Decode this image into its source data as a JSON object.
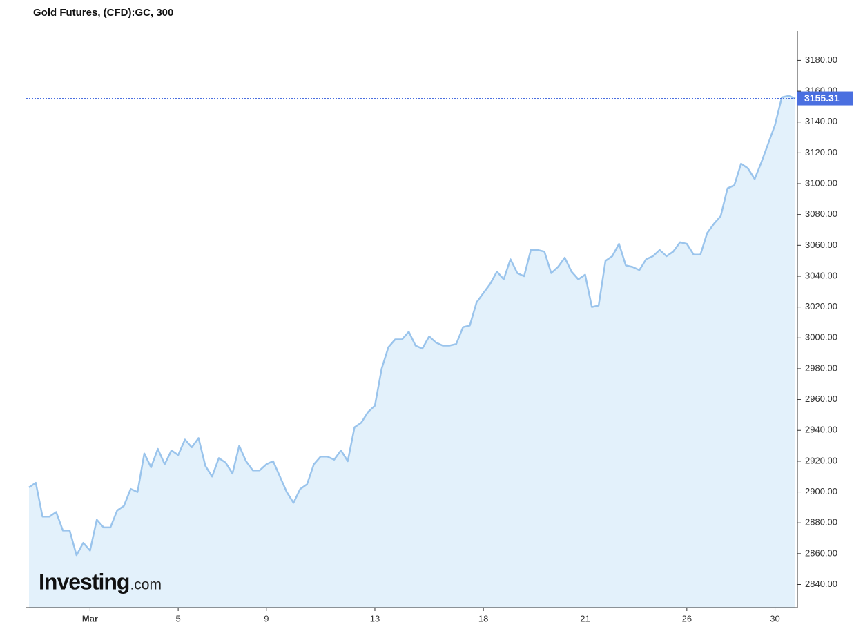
{
  "chart_data": {
    "type": "area",
    "title": "Gold Futures, (CFD):GC, 300",
    "logo": "Investing",
    "logo_suffix": ".com",
    "categories": [
      null,
      null,
      null,
      null,
      null,
      null,
      null,
      null,
      null,
      "Mar",
      null,
      null,
      null,
      null,
      null,
      null,
      null,
      null,
      null,
      null,
      null,
      null,
      "5",
      null,
      null,
      null,
      null,
      null,
      null,
      null,
      null,
      null,
      null,
      null,
      null,
      "9",
      null,
      null,
      null,
      null,
      null,
      null,
      null,
      null,
      null,
      null,
      null,
      null,
      null,
      null,
      null,
      "13",
      null,
      null,
      null,
      null,
      null,
      null,
      null,
      null,
      null,
      null,
      null,
      null,
      null,
      null,
      null,
      "18",
      null,
      null,
      null,
      null,
      null,
      null,
      null,
      null,
      null,
      null,
      null,
      null,
      null,
      null,
      "21",
      null,
      null,
      null,
      null,
      null,
      null,
      null,
      null,
      null,
      null,
      null,
      null,
      null,
      null,
      "26",
      null,
      null,
      null,
      null,
      null,
      null,
      null,
      null,
      null,
      null,
      null,
      null,
      "30",
      null,
      null,
      null
    ],
    "series": [
      {
        "name": "GC",
        "color": "#9ac4ec",
        "fill": "#e3f1fb",
        "values": [
          2903,
          2906,
          2884,
          2884,
          2887,
          2875,
          2875,
          2859,
          2867,
          2862,
          2882,
          2877,
          2877,
          2888,
          2891,
          2902,
          2900,
          2925,
          2916,
          2928,
          2918,
          2927,
          2924,
          2934,
          2929,
          2935,
          2917,
          2910,
          2922,
          2919,
          2912,
          2930,
          2920,
          2914,
          2914,
          2918,
          2920,
          2910,
          2900,
          2893,
          2902,
          2905,
          2918,
          2923,
          2923,
          2921,
          2927,
          2920,
          2942,
          2945,
          2952,
          2956,
          2980,
          2994,
          2999,
          2999,
          3004,
          2995,
          2993,
          3001,
          2997,
          2995,
          2995,
          2996,
          3007,
          3008,
          3023,
          3029,
          3035,
          3043,
          3038,
          3051,
          3042,
          3040,
          3057,
          3057,
          3056,
          3042,
          3046,
          3052,
          3043,
          3038,
          3041,
          3020,
          3021,
          3050,
          3053,
          3061,
          3047,
          3046,
          3044,
          3051,
          3053,
          3057,
          3053,
          3056,
          3062,
          3061,
          3054,
          3054,
          3068,
          3074,
          3079,
          3097,
          3099,
          3113,
          3110,
          3103,
          3114,
          3126,
          3138,
          3156,
          3157,
          3155.31
        ]
      }
    ],
    "last_value_color": "#4a6fe0",
    "ylim": [
      2825,
      3199
    ],
    "yticks": [
      {
        "value": 2840,
        "label": "2840.00"
      },
      {
        "value": 2860,
        "label": "2860.00"
      },
      {
        "value": 2880,
        "label": "2880.00"
      },
      {
        "value": 2900,
        "label": "2900.00"
      },
      {
        "value": 2920,
        "label": "2920.00"
      },
      {
        "value": 2940,
        "label": "2940.00"
      },
      {
        "value": 2960,
        "label": "2960.00"
      },
      {
        "value": 2980,
        "label": "2980.00"
      },
      {
        "value": 3000,
        "label": "3000.00"
      },
      {
        "value": 3020,
        "label": "3020.00"
      },
      {
        "value": 3040,
        "label": "3040.00"
      },
      {
        "value": 3060,
        "label": "3060.00"
      },
      {
        "value": 3080,
        "label": "3080.00"
      },
      {
        "value": 3100,
        "label": "3100.00"
      },
      {
        "value": 3120,
        "label": "3120.00"
      },
      {
        "value": 3140,
        "label": "3140.00"
      },
      {
        "value": 3160,
        "label": "3160.00"
      },
      {
        "value": 3180,
        "label": "3180.00"
      }
    ],
    "grid": false
  }
}
